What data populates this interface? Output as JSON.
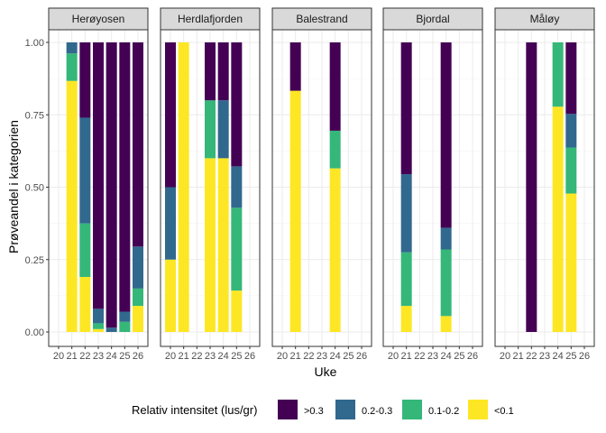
{
  "chart_data": {
    "type": "bar",
    "stacked": true,
    "xlabel": "Uke",
    "ylabel": "Prøveandel i kategorien",
    "ylim": [
      0,
      1
    ],
    "xlim": [
      20,
      26
    ],
    "x_ticks": [
      20,
      21,
      22,
      23,
      24,
      25,
      26
    ],
    "y_ticks": [
      0,
      0.25,
      0.5,
      0.75,
      1
    ],
    "y_tick_labels": [
      "0.00",
      "0.25",
      "0.50",
      "0.75",
      "1.00"
    ],
    "legend": {
      "title": "Relativ intensitet (lus/gr)",
      "position": "bottom",
      "items": [
        {
          "key": ">0.3",
          "label": ">0.3",
          "color": "#440154"
        },
        {
          "key": "0.2-0.3",
          "label": "0.2-0.3",
          "color": "#31688E"
        },
        {
          "key": "0.1-0.2",
          "label": "0.1-0.2",
          "color": "#35B779"
        },
        {
          "key": "<0.1",
          "label": "<0.1",
          "color": "#FDE725"
        }
      ]
    },
    "stack_order_bottom_to_top": [
      "<0.1",
      "0.1-0.2",
      "0.2-0.3",
      ">0.3"
    ],
    "panels": [
      {
        "name": "Herøyosen",
        "bars": [
          {
            "week": 21,
            "<0.1": 0.867,
            "0.1-0.2": 0.095,
            "0.2-0.3": 0.038,
            ">0.3": 0.0
          },
          {
            "week": 22,
            "<0.1": 0.19,
            "0.1-0.2": 0.185,
            "0.2-0.3": 0.365,
            ">0.3": 0.26
          },
          {
            "week": 23,
            "<0.1": 0.01,
            "0.1-0.2": 0.02,
            "0.2-0.3": 0.05,
            ">0.3": 0.92
          },
          {
            "week": 24,
            "<0.1": 0.0,
            "0.1-0.2": 0.0,
            "0.2-0.3": 0.015,
            ">0.3": 0.985
          },
          {
            "week": 25,
            "<0.1": 0.0,
            "0.1-0.2": 0.035,
            "0.2-0.3": 0.035,
            ">0.3": 0.93
          },
          {
            "week": 26,
            "<0.1": 0.09,
            "0.1-0.2": 0.06,
            "0.2-0.3": 0.145,
            ">0.3": 0.705
          }
        ]
      },
      {
        "name": "Herdlafjorden",
        "bars": [
          {
            "week": 20,
            "<0.1": 0.25,
            "0.1-0.2": 0.0,
            "0.2-0.3": 0.25,
            ">0.3": 0.5
          },
          {
            "week": 21,
            "<0.1": 1.0,
            "0.1-0.2": 0.0,
            "0.2-0.3": 0.0,
            ">0.3": 0.0
          },
          {
            "week": 23,
            "<0.1": 0.6,
            "0.1-0.2": 0.2,
            "0.2-0.3": 0.0,
            ">0.3": 0.2
          },
          {
            "week": 24,
            "<0.1": 0.6,
            "0.1-0.2": 0.0,
            "0.2-0.3": 0.2,
            ">0.3": 0.2
          },
          {
            "week": 25,
            "<0.1": 0.143,
            "0.1-0.2": 0.286,
            "0.2-0.3": 0.143,
            ">0.3": 0.428
          }
        ]
      },
      {
        "name": "Balestrand",
        "bars": [
          {
            "week": 21,
            "<0.1": 0.833,
            "0.1-0.2": 0.0,
            "0.2-0.3": 0.0,
            ">0.3": 0.167
          },
          {
            "week": 24,
            "<0.1": 0.565,
            "0.1-0.2": 0.13,
            "0.2-0.3": 0.0,
            ">0.3": 0.305
          }
        ]
      },
      {
        "name": "Bjordal",
        "bars": [
          {
            "week": 21,
            "<0.1": 0.09,
            "0.1-0.2": 0.185,
            "0.2-0.3": 0.27,
            ">0.3": 0.455
          },
          {
            "week": 24,
            "<0.1": 0.055,
            "0.1-0.2": 0.23,
            "0.2-0.3": 0.075,
            ">0.3": 0.64
          }
        ]
      },
      {
        "name": "Måløy",
        "bars": [
          {
            "week": 22,
            "<0.1": 0.0,
            "0.1-0.2": 0.0,
            "0.2-0.3": 0.0,
            ">0.3": 1.0
          },
          {
            "week": 24,
            "<0.1": 0.778,
            "0.1-0.2": 0.222,
            "0.2-0.3": 0.0,
            ">0.3": 0.0
          },
          {
            "week": 25,
            "<0.1": 0.478,
            "0.1-0.2": 0.159,
            "0.2-0.3": 0.116,
            ">0.3": 0.247
          }
        ]
      }
    ]
  }
}
